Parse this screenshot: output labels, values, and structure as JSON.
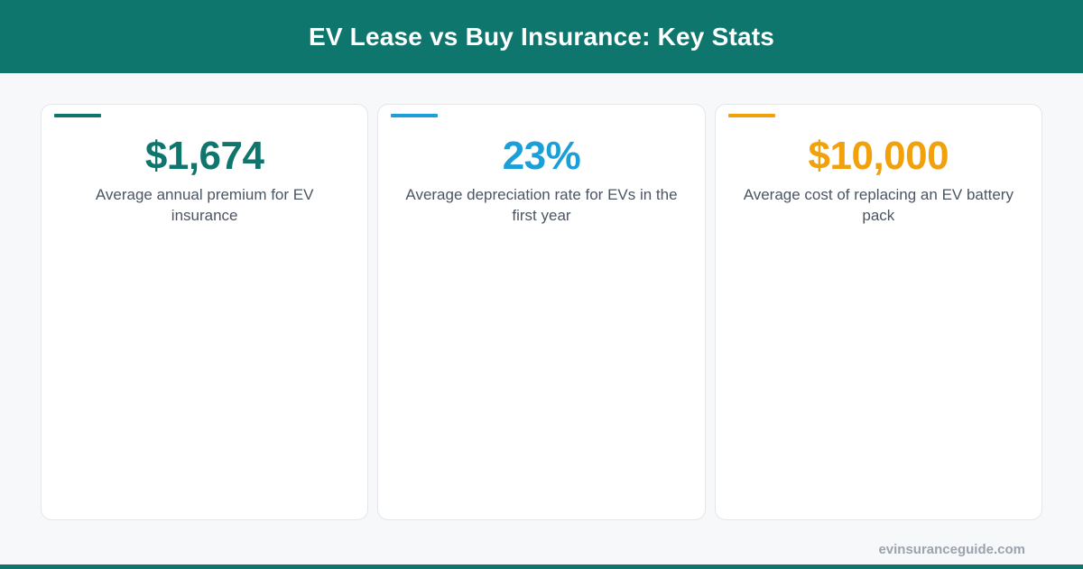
{
  "header": {
    "title": "EV Lease vs Buy Insurance: Key Stats"
  },
  "colors": {
    "brand": "#0f766e",
    "stat1": "#0f766e",
    "stat2": "#1a9fd8",
    "stat3": "#f0a10c"
  },
  "stats": [
    {
      "value": "$1,674",
      "description": "Average annual premium for EV insurance"
    },
    {
      "value": "23%",
      "description": "Average depreciation rate for EVs in the first year"
    },
    {
      "value": "$10,000",
      "description": "Average cost of replacing an EV battery pack"
    }
  ],
  "footer": {
    "site": "evinsuranceguide.com"
  }
}
